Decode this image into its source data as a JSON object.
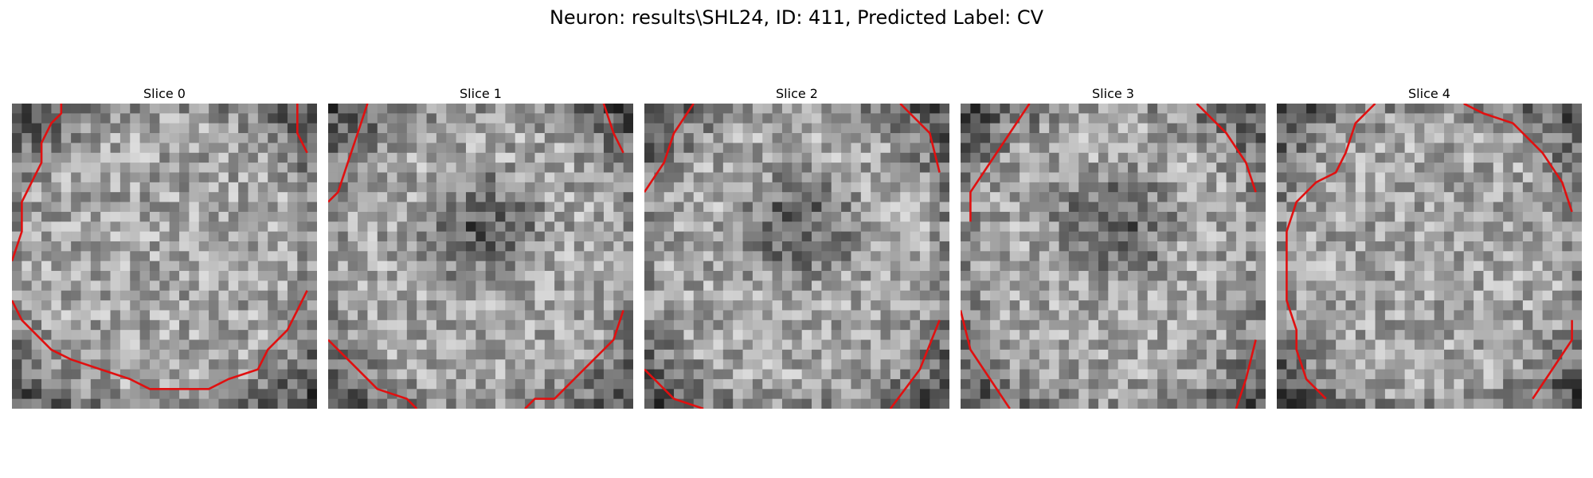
{
  "figure": {
    "title": "Neuron: results\\SHL24, ID: 411, Predicted Label: CV"
  },
  "panels": [
    {
      "title": "Slice 0",
      "dark_core": false
    },
    {
      "title": "Slice 1",
      "dark_core": true
    },
    {
      "title": "Slice 2",
      "dark_core": true
    },
    {
      "title": "Slice 3",
      "dark_core": true
    },
    {
      "title": "Slice 4",
      "dark_core": false
    }
  ],
  "colors": {
    "contour": "#e01010"
  }
}
